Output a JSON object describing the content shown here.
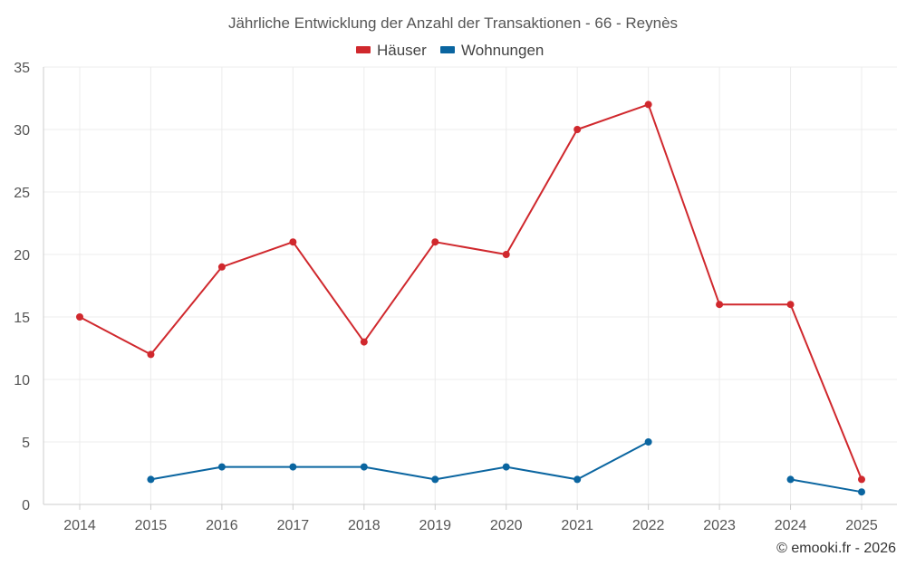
{
  "chart_data": {
    "type": "line",
    "title": "Jährliche Entwicklung der Anzahl der Transaktionen - 66 - Reynès",
    "categories": [
      "2014",
      "2015",
      "2016",
      "2017",
      "2018",
      "2019",
      "2020",
      "2021",
      "2022",
      "2023",
      "2024",
      "2025"
    ],
    "series": [
      {
        "name": "Häuser",
        "color": "#d0282d",
        "values": [
          15,
          12,
          19,
          21,
          13,
          21,
          20,
          30,
          32,
          16,
          16,
          2
        ]
      },
      {
        "name": "Wohnungen",
        "color": "#0a65a0",
        "values": [
          null,
          2,
          3,
          3,
          3,
          2,
          3,
          2,
          5,
          null,
          2,
          1
        ]
      }
    ],
    "ylim": [
      0,
      35
    ],
    "yticks": [
      0,
      5,
      10,
      15,
      20,
      25,
      30,
      35
    ],
    "grid": true,
    "legend_position": "top-center",
    "xlabel": "",
    "ylabel": ""
  },
  "credit": "© emooki.fr - 2026"
}
